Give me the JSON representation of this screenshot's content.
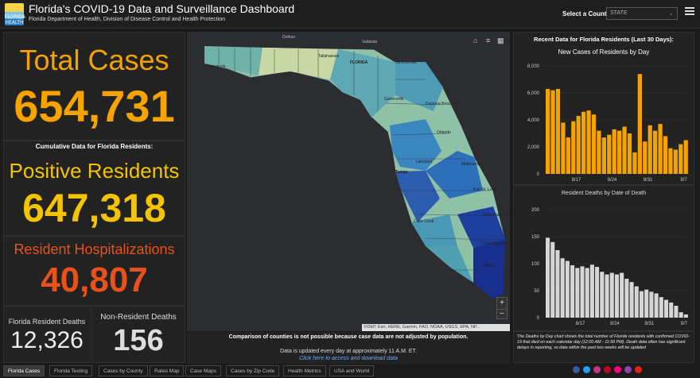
{
  "header": {
    "title": "Florida's COVID-19 Data and Surveillance Dashboard",
    "subtitle": "Florida Department of Health, Division of Disease Control and Health Protection",
    "logo_text": "FLORIDA HEALTH",
    "county_label": "Select a County",
    "county_value": "STATE"
  },
  "left": {
    "total_label": "Total Cases",
    "total_value": "654,731",
    "cumulative_label": "Cumulative Data for Florida Residents:",
    "positive_label": "Positive Residents",
    "positive_value": "647,318",
    "hosp_label": "Resident Hospitalizations",
    "hosp_value": "40,807",
    "deaths_label": "Florida Resident Deaths",
    "deaths_value": "12,326",
    "nonres_label": "Non-Resident Deaths",
    "nonres_value": "156"
  },
  "map": {
    "labels": [
      "Dothan",
      "Valdosta",
      "Tallahassee",
      "Jacksonville",
      "Gainesville",
      "Daytona Beach",
      "Orlando",
      "Lakeland",
      "Tampa",
      "Melbourne",
      "Port St. Lucie",
      "Cape Coral",
      "West Palm Beach",
      "Coral Springs",
      "Miami",
      "Pensacola",
      "FLORIDA"
    ],
    "attribution": "FDEP, Esri, HERE, Garmin, FAO, NOAA, USGS, EPA, NP...",
    "note": "Comparison of counties is not possible because case data are not adjusted by population.",
    "updated": "Data is updated every day at approximately 11 A.M. ET.",
    "link": "Click here to access and download data"
  },
  "right": {
    "heading": "Recent Data for Florida Residents (Last 30 Days):",
    "note": "The Deaths by Day chart shows the total number of Florida residents with confirmed COVID-19 that died on each calendar day (12:00 AM - 11:59 PM). Death data often has significant delays in reporting, so data within the past two weeks will be updated"
  },
  "chart_data": [
    {
      "type": "bar",
      "title": "New Cases of Residents by Day",
      "x_tick_labels": [
        "8/17",
        "8/24",
        "8/31",
        "9/7"
      ],
      "ylim": [
        0,
        8000
      ],
      "y_ticks": [
        "0",
        "2,000",
        "4,000",
        "6,000",
        "8,000"
      ],
      "values": [
        6300,
        6200,
        6300,
        3800,
        2700,
        3900,
        4300,
        4600,
        4700,
        4400,
        3200,
        2700,
        2900,
        3300,
        3200,
        3500,
        3000,
        1600,
        7400,
        2400,
        3600,
        3200,
        3700,
        2800,
        1900,
        1800,
        2200,
        2500
      ],
      "color": "#f5a300"
    },
    {
      "type": "bar",
      "title": "Resident Deaths by Date of Death",
      "x_tick_labels": [
        "8/17",
        "8/24",
        "8/31",
        "9/7"
      ],
      "ylim": [
        0,
        200
      ],
      "y_ticks": [
        "0",
        "50",
        "100",
        "150",
        "200"
      ],
      "values": [
        148,
        140,
        125,
        110,
        105,
        97,
        92,
        95,
        92,
        98,
        94,
        85,
        80,
        83,
        80,
        83,
        72,
        66,
        58,
        49,
        52,
        48,
        45,
        38,
        33,
        28,
        22,
        10,
        6
      ],
      "color": "#d6d6d6"
    }
  ],
  "tabs": [
    "Florida Cases",
    "Florida Testing",
    "Cases by County",
    "Rates Map",
    "Case Maps",
    "Cases by Zip Code",
    "Health Metrics",
    "USA and World"
  ],
  "social_icons": [
    "facebook-icon",
    "twitter-icon",
    "instagram-icon",
    "pinterest-icon",
    "flickr-icon",
    "podcast-icon",
    "youtube-icon"
  ]
}
